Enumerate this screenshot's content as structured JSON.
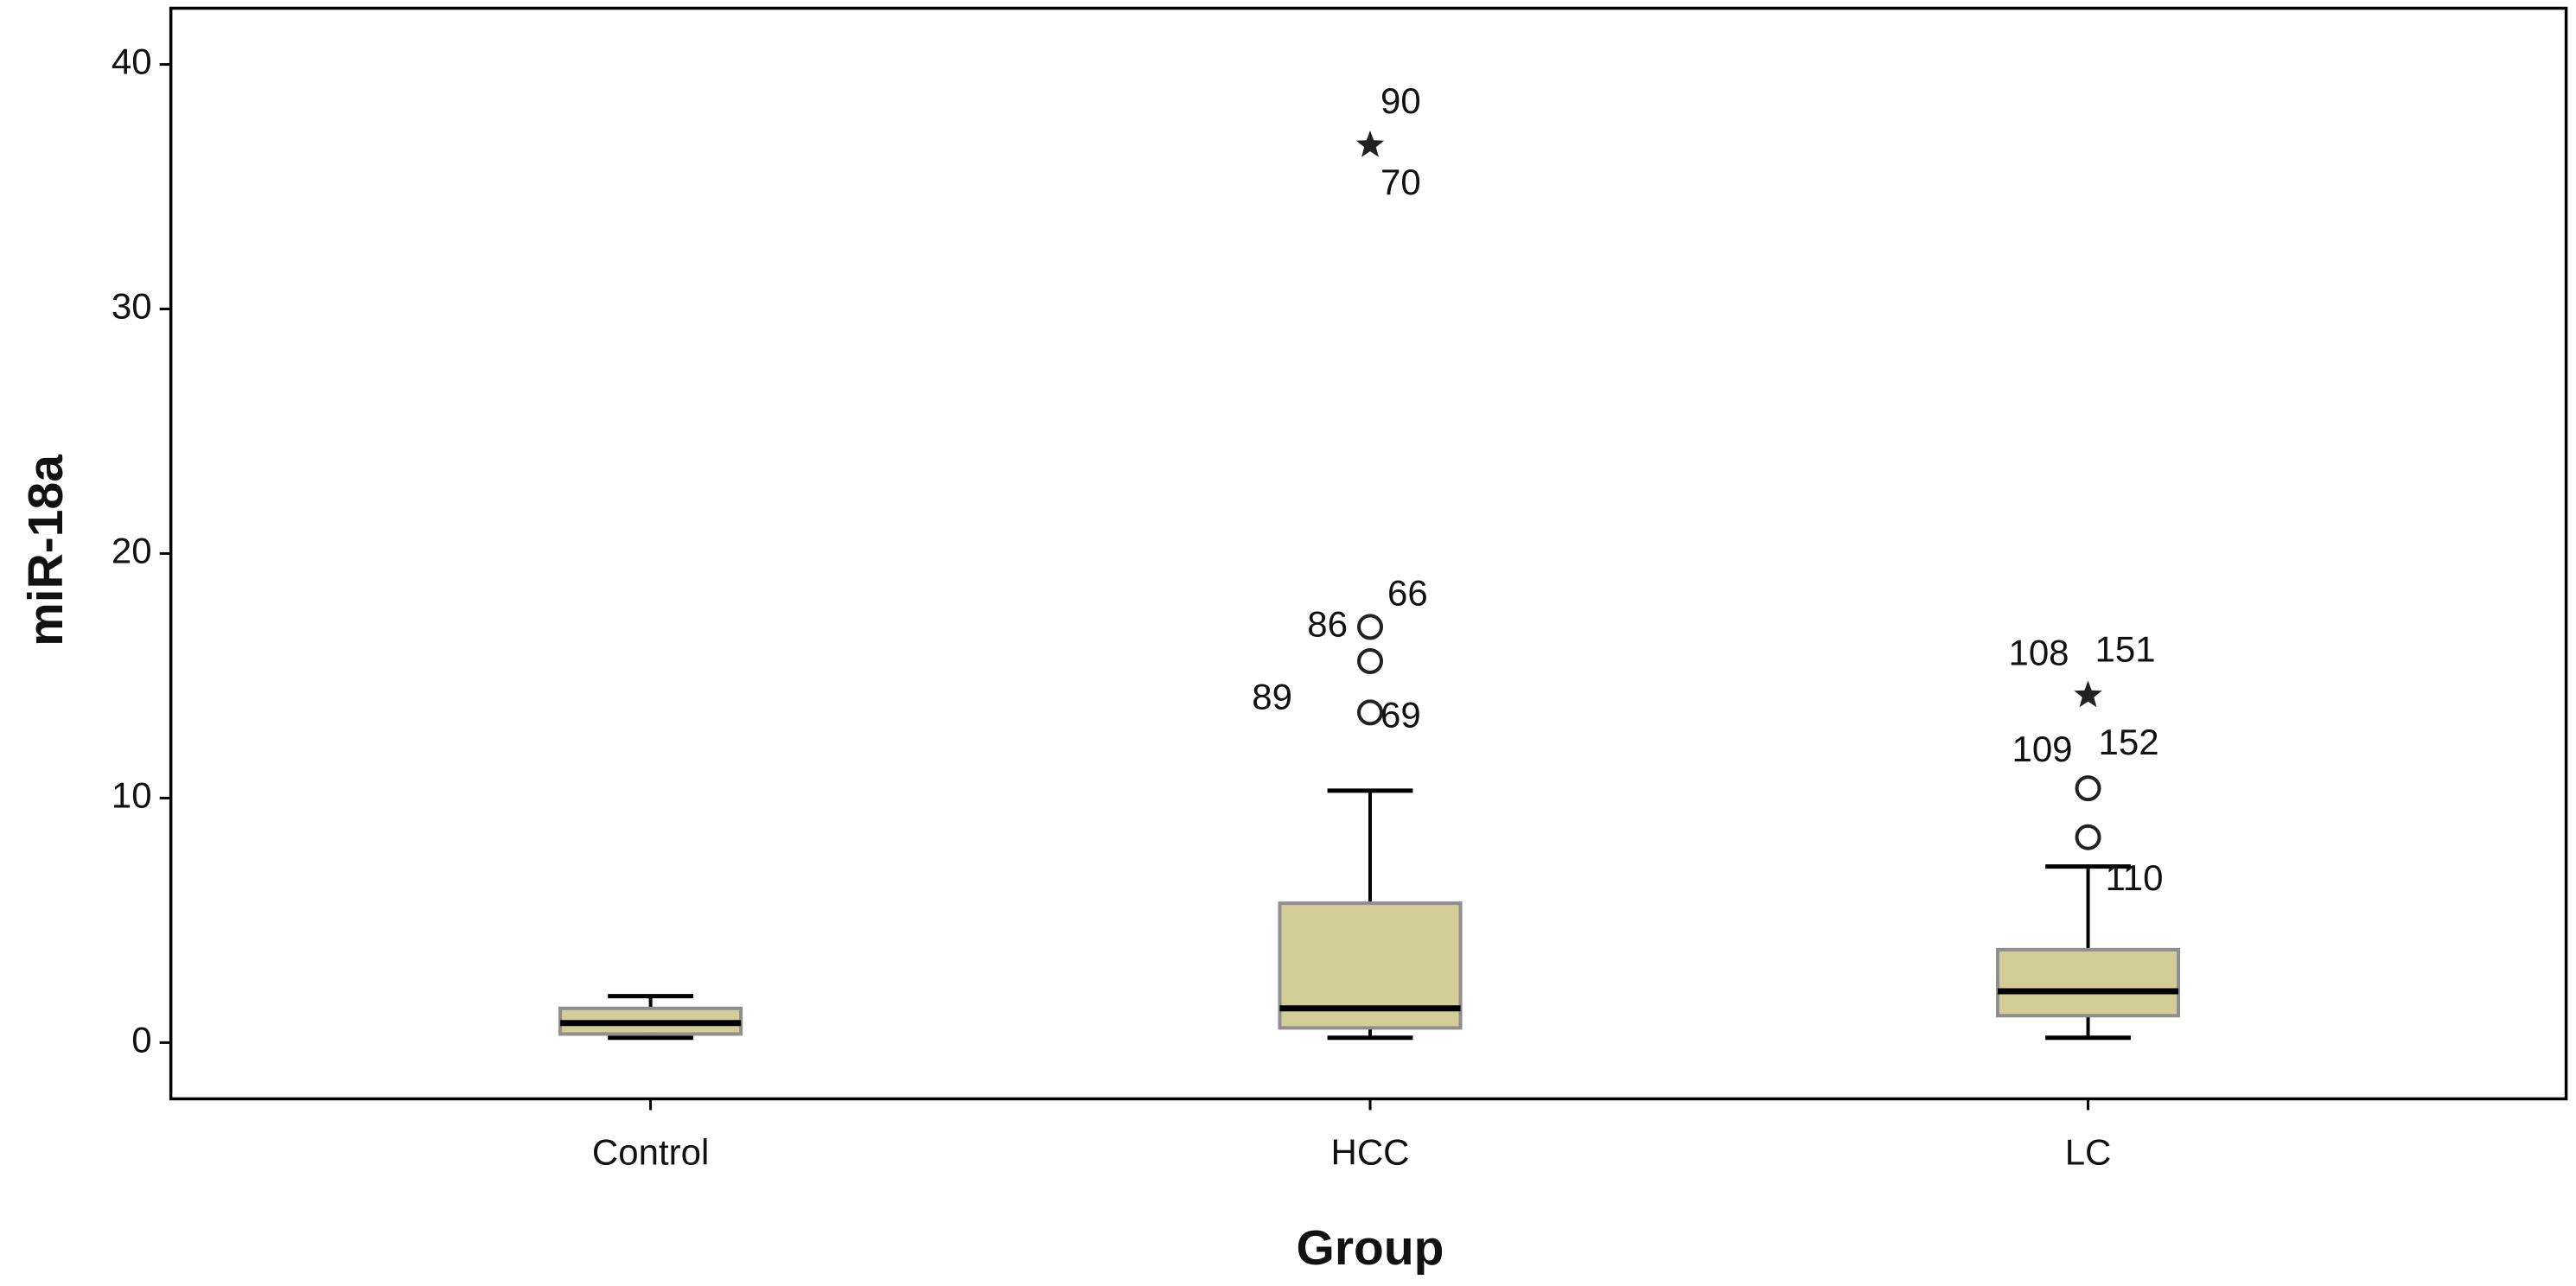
{
  "chart_data": {
    "type": "box",
    "x_label": "Group",
    "y_label": "miR-18a",
    "categories": [
      "Control",
      "HCC",
      "LC"
    ],
    "color": "#d3cd98",
    "ylim": [
      -2.3,
      42.3
    ],
    "yticks": [
      0,
      10,
      20,
      30,
      40
    ],
    "boxes": [
      {
        "whisker_low": 0.2,
        "q1": 0.35,
        "median": 0.8,
        "q3": 1.4,
        "whisker_high": 1.9,
        "outliers": [],
        "extremes": []
      },
      {
        "whisker_low": 0.2,
        "q1": 0.6,
        "median": 1.4,
        "q3": 5.7,
        "whisker_high": 10.3,
        "outliers": [
          {
            "value": 17.0,
            "labels": [
              "86",
              "66"
            ]
          },
          {
            "value": 15.6,
            "labels": []
          },
          {
            "value": 13.5,
            "labels": [
              "89",
              "69"
            ]
          }
        ],
        "extremes": [
          {
            "value": 36.7,
            "labels": [
              "90",
              "70"
            ]
          }
        ]
      },
      {
        "whisker_low": 0.2,
        "q1": 1.1,
        "median": 2.1,
        "q3": 3.8,
        "whisker_high": 7.2,
        "outliers": [
          {
            "value": 10.4,
            "labels": [
              "109",
              "152"
            ]
          },
          {
            "value": 8.4,
            "labels": [
              "110"
            ]
          }
        ],
        "extremes": [
          {
            "value": 14.2,
            "labels": [
              "108",
              "151"
            ]
          }
        ]
      }
    ]
  }
}
